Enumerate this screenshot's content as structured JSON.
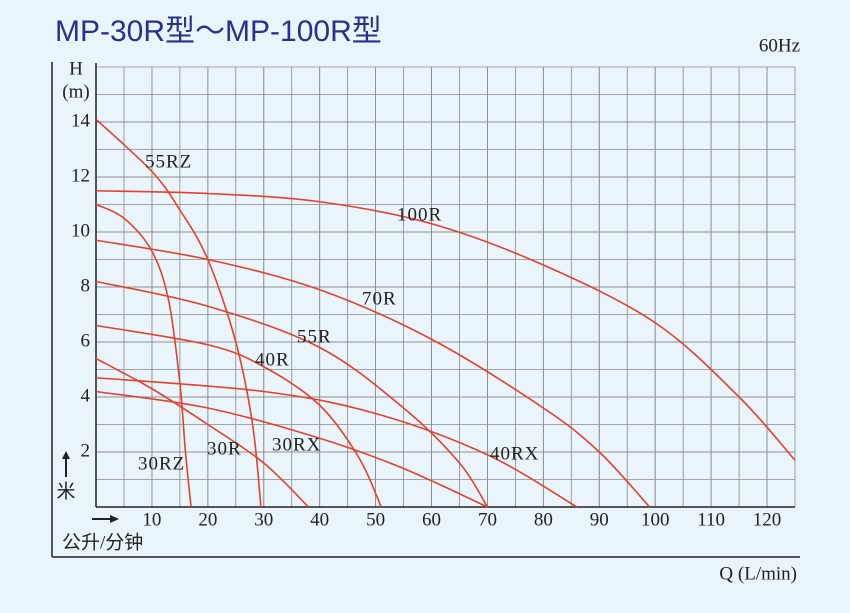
{
  "chart_data": {
    "type": "line",
    "title": "MP-30R型～MP-100R型",
    "subtitle": "60Hz",
    "y_symbol": "H",
    "y_unit": "(m)",
    "y_label_cn": "米",
    "x_label_cn": "公升/分钟",
    "x_label": "Q (L/min)",
    "xlim": [
      0,
      125
    ],
    "ylim": [
      0,
      16
    ],
    "xticks": [
      10,
      20,
      30,
      40,
      50,
      60,
      70,
      80,
      90,
      100,
      110,
      120
    ],
    "yticks": [
      2,
      4,
      6,
      8,
      10,
      12,
      14
    ],
    "grid": true,
    "series": [
      {
        "name": "55RZ",
        "color": "#e5412f",
        "x": [
          0,
          10,
          15,
          20,
          25,
          28,
          29.5
        ],
        "values": [
          14.1,
          12.2,
          10.8,
          9.0,
          6.0,
          3.0,
          0
        ]
      },
      {
        "name": "100R",
        "color": "#e5412f",
        "x": [
          0,
          20,
          40,
          60,
          80,
          100,
          115,
          125
        ],
        "values": [
          11.5,
          11.4,
          11.1,
          10.3,
          8.8,
          6.7,
          4.0,
          1.7
        ]
      },
      {
        "name": "70R",
        "color": "#e5412f",
        "x": [
          0,
          20,
          40,
          60,
          80,
          90,
          99
        ],
        "values": [
          9.7,
          9.0,
          7.9,
          6.1,
          3.6,
          2.0,
          0
        ]
      },
      {
        "name": "55R",
        "color": "#e5412f",
        "x": [
          0,
          20,
          40,
          55,
          65,
          70
        ],
        "values": [
          8.2,
          7.3,
          5.8,
          3.6,
          1.6,
          0
        ]
      },
      {
        "name": "40R",
        "color": "#e5412f",
        "x": [
          0,
          20,
          30,
          40,
          47,
          51
        ],
        "values": [
          6.6,
          5.9,
          5.1,
          3.7,
          1.8,
          0
        ]
      },
      {
        "name": "40RX",
        "color": "#e5412f",
        "x": [
          0,
          30,
          50,
          70,
          86
        ],
        "values": [
          4.7,
          4.2,
          3.4,
          1.9,
          0
        ]
      },
      {
        "name": "30RX",
        "color": "#e5412f",
        "x": [
          0,
          20,
          40,
          55,
          70
        ],
        "values": [
          4.2,
          3.6,
          2.5,
          1.4,
          0
        ]
      },
      {
        "name": "30R",
        "color": "#e5412f",
        "x": [
          0,
          10,
          20,
          30,
          38
        ],
        "values": [
          5.4,
          4.3,
          3.0,
          1.6,
          0
        ]
      },
      {
        "name": "30RZ",
        "color": "#e5412f",
        "x": [
          0,
          5,
          10,
          13,
          15,
          16,
          17
        ],
        "values": [
          11.0,
          10.5,
          9.3,
          7.5,
          4.5,
          2.0,
          0
        ]
      }
    ]
  }
}
